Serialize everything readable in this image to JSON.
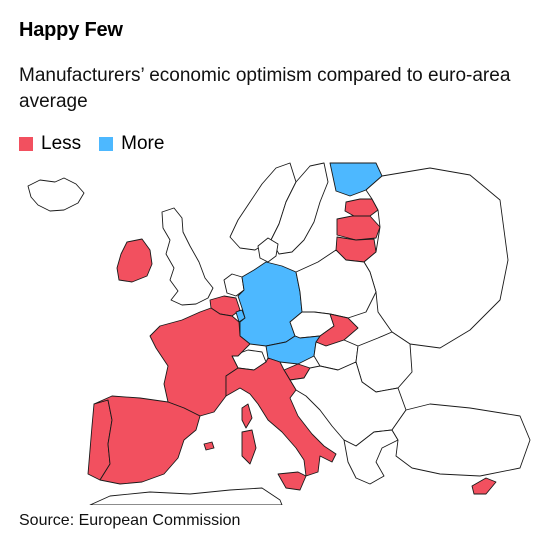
{
  "title": "Happy Few",
  "subtitle": "Manufacturers’ economic optimism compared to euro-area average",
  "legend": [
    {
      "label": "Less",
      "color": "#f2505f"
    },
    {
      "label": "More",
      "color": "#4db8ff"
    }
  ],
  "colors": {
    "less": "#f2505f",
    "more": "#4db8ff",
    "none": "#ffffff"
  },
  "regions": {
    "less": [
      "Ireland",
      "France",
      "Belgium",
      "Spain",
      "Portugal",
      "Italy",
      "Slovakia",
      "Slovenia",
      "Estonia",
      "Latvia",
      "Lithuania",
      "Cyprus"
    ],
    "more": [
      "Germany",
      "Austria",
      "Luxembourg",
      "Finland"
    ]
  },
  "source": "Source: European Commission"
}
